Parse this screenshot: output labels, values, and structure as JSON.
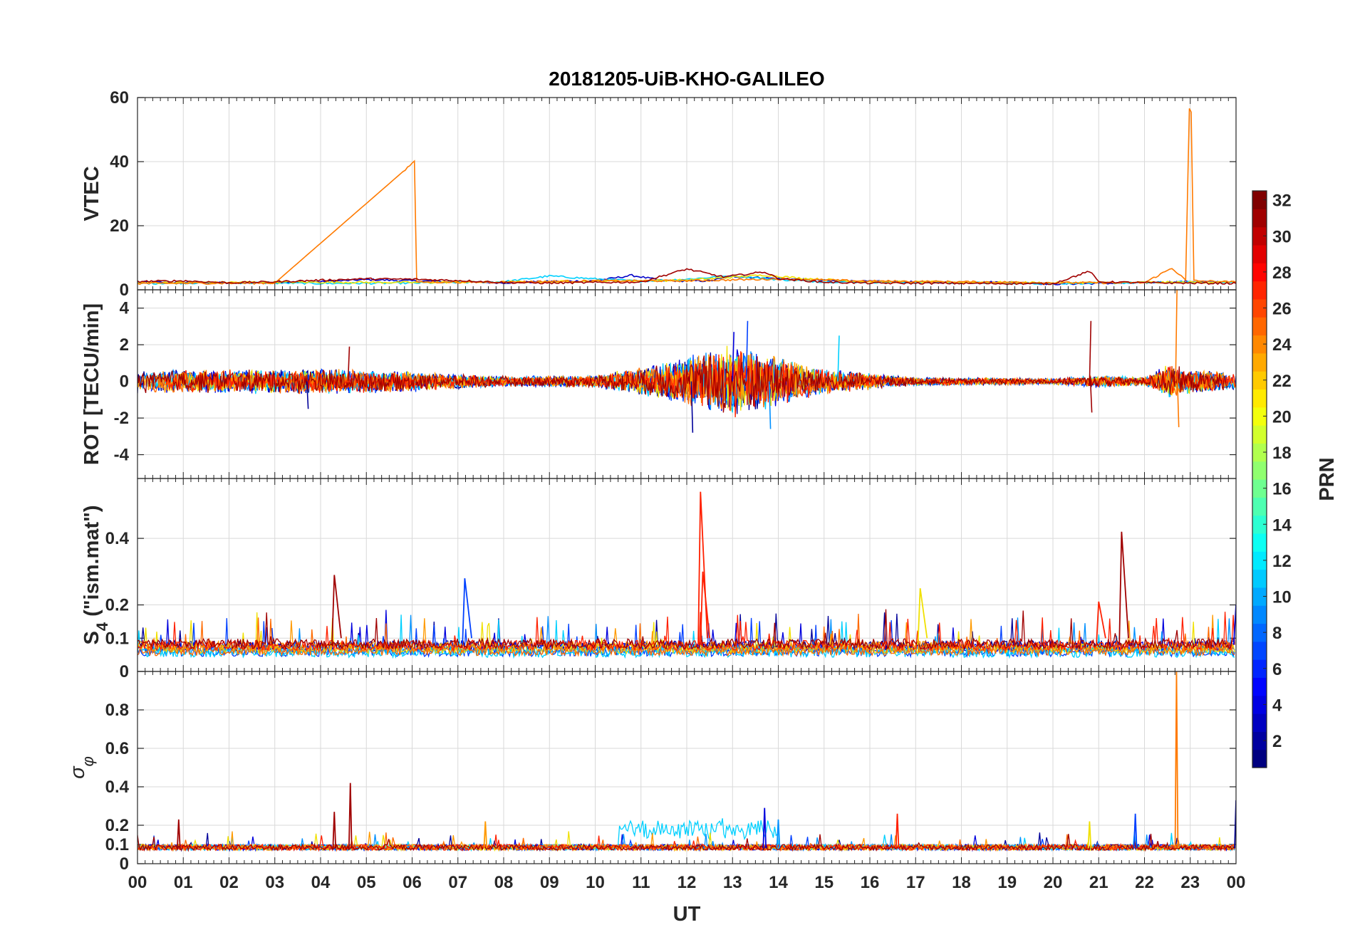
{
  "chart_data": {
    "type": "line",
    "title": "20181205-UiB-KHO-GALILEO",
    "xlabel": "UT",
    "x_tick_labels": [
      "00",
      "01",
      "02",
      "03",
      "04",
      "05",
      "06",
      "07",
      "08",
      "09",
      "10",
      "11",
      "12",
      "13",
      "14",
      "15",
      "16",
      "17",
      "18",
      "19",
      "20",
      "21",
      "22",
      "23",
      "00"
    ],
    "xlim": [
      0,
      24
    ],
    "colorbar": {
      "label": "PRN",
      "range": [
        1,
        32
      ],
      "ticks": [
        2,
        4,
        6,
        8,
        10,
        12,
        14,
        16,
        18,
        20,
        22,
        24,
        26,
        28,
        30,
        32
      ],
      "colormap": "jet"
    },
    "panels": [
      {
        "id": "vtec",
        "ylabel": "VTEC",
        "ylim": [
          0,
          60
        ],
        "yticks": [
          0,
          20,
          40,
          60
        ],
        "series": [
          {
            "prn": 3,
            "color": "#0000c8",
            "points": [
              [
                0,
                2.4
              ],
              [
                1,
                2.3
              ],
              [
                2,
                2.1
              ],
              [
                3,
                2.3
              ],
              [
                4,
                2.5
              ],
              [
                5,
                3.2
              ],
              [
                6,
                2.8
              ],
              [
                7,
                2.5
              ],
              [
                8,
                2.2
              ],
              [
                9,
                2.6
              ],
              [
                10,
                2.8
              ],
              [
                10.8,
                4.5
              ],
              [
                11.5,
                2.8
              ],
              [
                12.5,
                2.8
              ],
              [
                13,
                4.2
              ],
              [
                14,
                3.5
              ],
              [
                15,
                2.9
              ],
              [
                16,
                2.6
              ],
              [
                17,
                2.4
              ],
              [
                18,
                2.3
              ],
              [
                19,
                2.4
              ],
              [
                20,
                1.8
              ],
              [
                21,
                2.0
              ],
              [
                22,
                2.2
              ],
              [
                23,
                2.6
              ],
              [
                24,
                2.4
              ]
            ]
          },
          {
            "prn": 12,
            "color": "#00d0ff",
            "points": [
              [
                0,
                2.0
              ],
              [
                2,
                2.2
              ],
              [
                4,
                2.0
              ],
              [
                6,
                2.1
              ],
              [
                8,
                2.5
              ],
              [
                9,
                4.3
              ],
              [
                10,
                3.4
              ],
              [
                11,
                2.7
              ],
              [
                12,
                3.3
              ],
              [
                13,
                4.4
              ],
              [
                14,
                3.2
              ],
              [
                15,
                2.5
              ],
              [
                16,
                2.4
              ],
              [
                18,
                2.2
              ],
              [
                20,
                2.0
              ],
              [
                22,
                2.2
              ],
              [
                23,
                2.4
              ],
              [
                24,
                2.2
              ]
            ]
          },
          {
            "prn": 21,
            "color": "#f0e000",
            "points": [
              [
                0,
                2.2
              ],
              [
                3,
                2.4
              ],
              [
                6,
                2.3
              ],
              [
                9,
                2.5
              ],
              [
                12,
                3.0
              ],
              [
                13.7,
                4.6
              ],
              [
                14.5,
                3.6
              ],
              [
                16,
                2.5
              ],
              [
                18,
                2.4
              ],
              [
                20,
                2.2
              ],
              [
                22,
                2.3
              ],
              [
                24,
                2.4
              ]
            ]
          },
          {
            "prn": 24,
            "color": "#ff7a00",
            "points": [
              [
                0,
                2.0
              ],
              [
                3,
                2.1
              ],
              [
                5.85,
                37.5
              ],
              [
                6.05,
                40.2
              ],
              [
                6.1,
                2.4
              ],
              [
                8,
                2.4
              ],
              [
                10,
                2.8
              ],
              [
                12,
                2.8
              ],
              [
                14,
                3.4
              ],
              [
                16,
                2.7
              ],
              [
                18,
                2.5
              ],
              [
                20,
                2.2
              ],
              [
                22,
                2.2
              ],
              [
                22.6,
                6.8
              ],
              [
                22.9,
                3.0
              ],
              [
                22.98,
                56.5
              ],
              [
                23.02,
                55.5
              ],
              [
                23.08,
                2.8
              ],
              [
                24,
                2.4
              ]
            ]
          },
          {
            "prn": 31,
            "color": "#a00000",
            "points": [
              [
                0,
                2.6
              ],
              [
                1,
                2.8
              ],
              [
                2,
                2.2
              ],
              [
                3,
                2.5
              ],
              [
                4,
                3.0
              ],
              [
                5,
                3.4
              ],
              [
                6,
                3.3
              ],
              [
                7,
                2.9
              ],
              [
                8,
                2.3
              ],
              [
                9,
                2.1
              ],
              [
                10,
                2.3
              ],
              [
                11,
                2.4
              ],
              [
                12,
                6.5
              ],
              [
                12.8,
                4.0
              ],
              [
                13.7,
                5.6
              ],
              [
                14,
                3.5
              ],
              [
                15,
                2.4
              ],
              [
                16,
                2.1
              ],
              [
                18,
                2.0
              ],
              [
                20,
                1.9
              ],
              [
                20.8,
                5.8
              ],
              [
                21,
                2.5
              ],
              [
                22,
                2.2
              ],
              [
                24,
                2.0
              ]
            ]
          }
        ]
      },
      {
        "id": "rot",
        "ylabel": "ROT [TECU/min]",
        "ylim": [
          -5.3,
          5
        ],
        "yticks": [
          -4,
          -2,
          0,
          2,
          4
        ],
        "noise_profile": [
          [
            0,
            0.55
          ],
          [
            4,
            0.6
          ],
          [
            5,
            0.55
          ],
          [
            6,
            0.5
          ],
          [
            7,
            0.35
          ],
          [
            8,
            0.25
          ],
          [
            10,
            0.3
          ],
          [
            11,
            0.7
          ],
          [
            12,
            1.2
          ],
          [
            13,
            1.7
          ],
          [
            14,
            1.2
          ],
          [
            15,
            0.6
          ],
          [
            16,
            0.4
          ],
          [
            17,
            0.2
          ],
          [
            20,
            0.15
          ],
          [
            21,
            0.3
          ],
          [
            22,
            0.2
          ],
          [
            22.5,
            0.8
          ],
          [
            23,
            0.6
          ],
          [
            24,
            0.4
          ]
        ],
        "spikes": [
          [
            12.1,
            -2.8
          ],
          [
            13.0,
            2.7
          ],
          [
            13.3,
            3.3
          ],
          [
            13.8,
            -2.6
          ],
          [
            15.3,
            2.5
          ],
          [
            20.8,
            3.3
          ],
          [
            20.82,
            -1.7
          ],
          [
            22.68,
            5.0
          ],
          [
            22.72,
            -2.5
          ],
          [
            4.6,
            1.9
          ],
          [
            3.7,
            -1.5
          ]
        ]
      },
      {
        "id": "s4",
        "ylabel": "S4 (\"ism.mat\")",
        "ylabel_main": "S",
        "ylabel_sub": "4",
        "ylabel_rest": " (\"ism.mat\")",
        "ylim": [
          0,
          0.58
        ],
        "yticks": [
          0,
          0.1,
          0.2,
          0.4
        ],
        "tick_labels": [
          "0",
          "0.1",
          "0.2",
          "0.4"
        ],
        "spikes": [
          [
            12.3,
            0.54
          ],
          [
            12.35,
            0.3
          ],
          [
            21.5,
            0.42
          ],
          [
            4.3,
            0.29
          ],
          [
            7.15,
            0.28
          ],
          [
            17.1,
            0.25
          ],
          [
            21.0,
            0.21
          ],
          [
            24,
            0.2
          ]
        ]
      },
      {
        "id": "sigma",
        "ylabel": "σφ",
        "ylabel_main": "σ",
        "ylabel_sub": "φ",
        "ylim": [
          0,
          1
        ],
        "yticks": [
          0,
          0.1,
          0.2,
          0.4,
          0.6,
          0.8
        ],
        "tick_labels": [
          "0",
          "0.1",
          "0.2",
          "0.4",
          "0.6",
          "0.8"
        ],
        "spikes": [
          [
            4.65,
            0.42
          ],
          [
            4.3,
            0.27
          ],
          [
            22.7,
            1.0
          ],
          [
            13.7,
            0.29
          ],
          [
            16.6,
            0.26
          ],
          [
            20.8,
            0.22
          ],
          [
            21.8,
            0.26
          ],
          [
            0.9,
            0.23
          ],
          [
            7.6,
            0.22
          ],
          [
            14.0,
            0.23
          ],
          [
            24,
            0.33
          ]
        ]
      }
    ]
  }
}
